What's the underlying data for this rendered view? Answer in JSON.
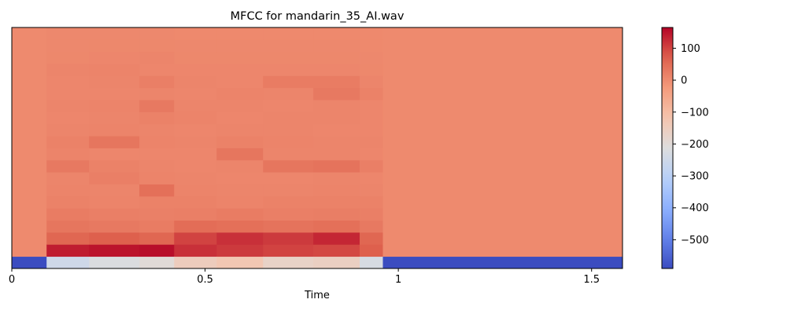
{
  "chart_data": {
    "type": "heatmap",
    "title": "MFCC for mandarin_35_AI.wav",
    "xlabel": "Time",
    "ylabel": "",
    "xlim": [
      0,
      1.58
    ],
    "x_ticks": [
      {
        "value": 0,
        "label": "0"
      },
      {
        "value": 0.5,
        "label": "0.5"
      },
      {
        "value": 1,
        "label": "1"
      },
      {
        "value": 1.5,
        "label": "1.5"
      }
    ],
    "n_coefficients": 20,
    "frames": [
      {
        "t_start": 0.0,
        "t_end": 0.09,
        "c": [
          -590,
          3,
          2,
          2,
          2,
          2,
          2,
          2,
          2,
          2,
          2,
          2,
          2,
          2,
          2,
          2,
          2,
          2,
          2,
          2
        ]
      },
      {
        "t_start": 0.09,
        "t_end": 0.2,
        "c": [
          -250,
          140,
          60,
          35,
          25,
          15,
          12,
          10,
          30,
          12,
          15,
          10,
          8,
          10,
          8,
          8,
          10,
          6,
          5,
          5
        ]
      },
      {
        "t_start": 0.2,
        "t_end": 0.33,
        "c": [
          -220,
          150,
          70,
          30,
          20,
          12,
          10,
          20,
          15,
          8,
          35,
          12,
          10,
          12,
          8,
          10,
          12,
          8,
          6,
          5
        ]
      },
      {
        "t_start": 0.33,
        "t_end": 0.42,
        "c": [
          -200,
          155,
          60,
          25,
          18,
          15,
          45,
          12,
          10,
          8,
          12,
          10,
          15,
          30,
          10,
          20,
          8,
          10,
          6,
          5
        ]
      },
      {
        "t_start": 0.42,
        "t_end": 0.53,
        "c": [
          -150,
          120,
          100,
          50,
          20,
          15,
          12,
          10,
          8,
          8,
          10,
          8,
          12,
          10,
          8,
          10,
          8,
          6,
          5,
          4
        ]
      },
      {
        "t_start": 0.53,
        "t_end": 0.65,
        "c": [
          -130,
          110,
          120,
          45,
          25,
          12,
          10,
          8,
          10,
          35,
          15,
          10,
          8,
          10,
          12,
          8,
          8,
          6,
          5,
          4
        ]
      },
      {
        "t_start": 0.65,
        "t_end": 0.78,
        "c": [
          -170,
          100,
          110,
          40,
          20,
          15,
          10,
          8,
          35,
          10,
          12,
          10,
          10,
          8,
          10,
          25,
          8,
          6,
          5,
          4
        ]
      },
      {
        "t_start": 0.78,
        "t_end": 0.9,
        "c": [
          -160,
          95,
          130,
          45,
          22,
          15,
          12,
          10,
          40,
          10,
          10,
          8,
          10,
          10,
          30,
          25,
          8,
          6,
          5,
          4
        ]
      },
      {
        "t_start": 0.9,
        "t_end": 0.96,
        "c": [
          -230,
          70,
          60,
          30,
          20,
          15,
          10,
          8,
          20,
          8,
          10,
          8,
          8,
          8,
          15,
          10,
          6,
          5,
          4,
          4
        ]
      },
      {
        "t_start": 0.96,
        "t_end": 1.58,
        "c": [
          -590,
          3,
          2,
          2,
          2,
          2,
          2,
          2,
          2,
          2,
          2,
          2,
          2,
          2,
          2,
          2,
          2,
          2,
          2,
          2
        ]
      }
    ],
    "colorbar": {
      "colormap": "coolwarm",
      "vmin": -590,
      "vmax": 165,
      "ticks": [
        {
          "value": 100,
          "label": "100"
        },
        {
          "value": 0,
          "label": "0"
        },
        {
          "value": -100,
          "label": "−100"
        },
        {
          "value": -200,
          "label": "−200"
        },
        {
          "value": -300,
          "label": "−300"
        },
        {
          "value": -400,
          "label": "−400"
        },
        {
          "value": -500,
          "label": "−500"
        }
      ]
    },
    "grid": false,
    "legend": "none"
  }
}
